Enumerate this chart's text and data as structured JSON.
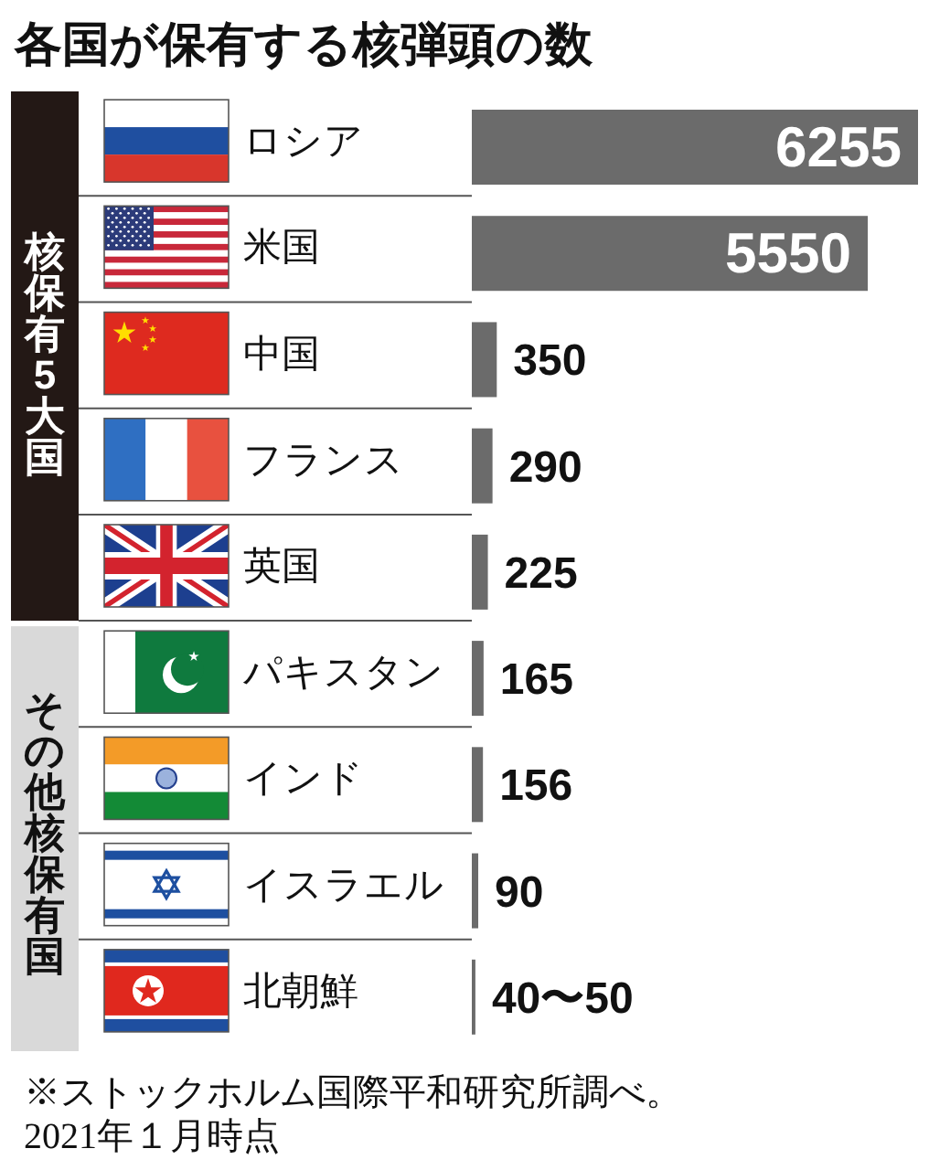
{
  "chart_data": {
    "type": "bar",
    "orientation": "horizontal",
    "title": "各国が保有する核弾頭の数",
    "categories": [
      "ロシア",
      "米国",
      "中国",
      "フランス",
      "英国",
      "パキスタン",
      "インド",
      "イスラエル",
      "北朝鮮"
    ],
    "values": [
      6255,
      5550,
      350,
      290,
      225,
      165,
      156,
      90,
      50
    ],
    "value_labels": [
      "6255",
      "5550",
      "350",
      "290",
      "225",
      "165",
      "156",
      "90",
      "40〜50"
    ],
    "color": "#6b6b6b",
    "annotations": [
      "核保有5大国",
      "その他核保有国",
      "※ストックホルム国際平和研究所調べ。",
      "2021年１月時点"
    ]
  }
}
